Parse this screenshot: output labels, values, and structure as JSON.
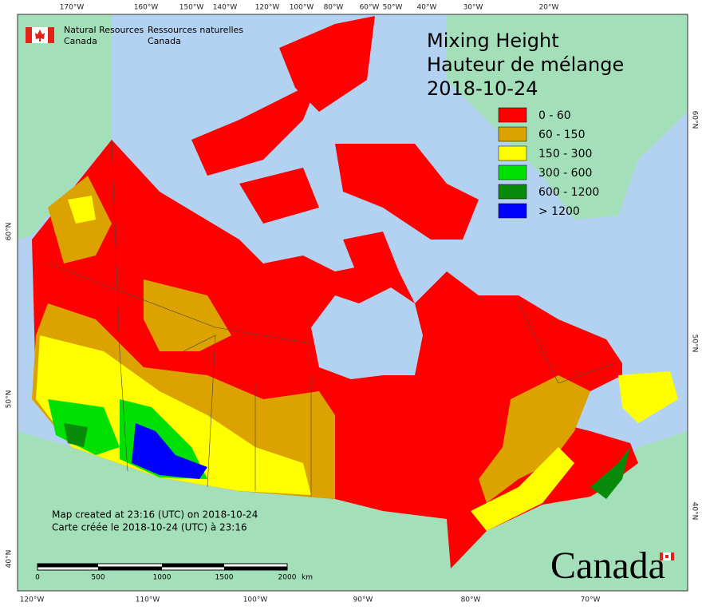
{
  "title": {
    "line1": "Mixing Height",
    "line2": "Hauteur de mélange",
    "date": "2018-10-24"
  },
  "agency": {
    "en": [
      "Natural Resources",
      "Canada"
    ],
    "fr": [
      "Ressources naturelles",
      "Canada"
    ]
  },
  "legend": [
    {
      "label": "0 - 60",
      "color": "#ff0000"
    },
    {
      "label": "60 - 150",
      "color": "#dba200"
    },
    {
      "label": "150 - 300",
      "color": "#ffff00"
    },
    {
      "label": "300 - 600",
      "color": "#00e000"
    },
    {
      "label": "600 - 1200",
      "color": "#0a8a0a"
    },
    {
      "label": "> 1200",
      "color": "#0000ff"
    }
  ],
  "graticule": {
    "top": [
      "170°W",
      "160°W",
      "150°W",
      "140°W",
      "120°W",
      "100°W",
      "80°W",
      "60°W",
      "50°W",
      "40°W",
      "30°W",
      "20°W"
    ],
    "bottom": [
      "120°W",
      "110°W",
      "100°W",
      "90°W",
      "80°W",
      "70°W"
    ],
    "left": [
      "60°N",
      "50°N",
      "40°N"
    ],
    "right": [
      "60°N",
      "50°N",
      "40°N"
    ]
  },
  "credits": [
    "Map created at 23:16 (UTC) on 2018-10-24",
    "Carte créée le 2018-10-24 (UTC) à 23:16"
  ],
  "scale_bar": {
    "labels": [
      "0",
      "500",
      "1000",
      "1500",
      "2000"
    ],
    "unit": "km"
  },
  "wordmark": "Canada"
}
